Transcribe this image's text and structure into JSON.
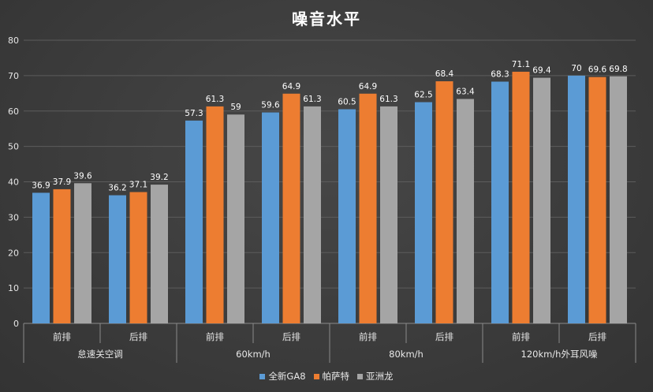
{
  "chart_data": {
    "type": "bar",
    "title": "噪音水平",
    "ylim": [
      0,
      80
    ],
    "yticks": [
      0,
      10,
      20,
      30,
      40,
      50,
      60,
      70,
      80
    ],
    "grid": true,
    "legend_position": "bottom",
    "groups": [
      {
        "label": "怠速关空调",
        "subcategories": [
          "前排",
          "后排"
        ]
      },
      {
        "label": "60km/h",
        "subcategories": [
          "前排",
          "后排"
        ]
      },
      {
        "label": "80km/h",
        "subcategories": [
          "前排",
          "后排"
        ]
      },
      {
        "label": "120km/h外耳风噪",
        "subcategories": [
          "前排",
          "后排"
        ]
      }
    ],
    "series": [
      {
        "name": "全新GA8",
        "color": "#5b9bd5",
        "values": [
          36.9,
          36.2,
          57.3,
          59.6,
          60.5,
          62.5,
          68.3,
          70
        ]
      },
      {
        "name": "帕萨特",
        "color": "#ed7d31",
        "values": [
          37.9,
          37.1,
          61.3,
          64.9,
          64.9,
          68.4,
          71.1,
          69.6
        ]
      },
      {
        "name": "亚洲龙",
        "color": "#a5a5a5",
        "values": [
          39.6,
          39.2,
          59,
          61.3,
          61.3,
          63.4,
          69.4,
          69.8
        ]
      }
    ],
    "data_labels": [
      [
        "36.9",
        "36.2",
        "57.3",
        "59.6",
        "60.5",
        "62.5",
        "68.3",
        "70"
      ],
      [
        "37.9",
        "37.1",
        "61.3",
        "64.9",
        "64.9",
        "68.4",
        "71.1",
        "69.6"
      ],
      [
        "39.6",
        "39.2",
        "59",
        "61.3",
        "61.3",
        "63.4",
        "69.4",
        "69.8"
      ]
    ]
  }
}
